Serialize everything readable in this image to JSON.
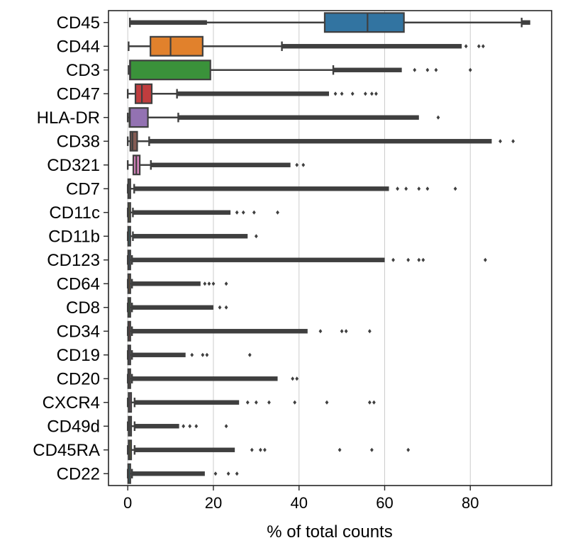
{
  "chart_data": {
    "type": "boxplot",
    "orientation": "horizontal",
    "xlabel": "% of total counts",
    "ylabel": "",
    "title": "",
    "xlim": [
      -4.5,
      99
    ],
    "xticks": [
      0,
      20,
      40,
      60,
      80
    ],
    "xtick_labels": [
      "0",
      "20",
      "40",
      "60",
      "80"
    ],
    "grid": "vertical lines at x ticks",
    "categories": [
      "CD45",
      "CD44",
      "CD3",
      "CD47",
      "HLA-DR",
      "CD38",
      "CD321",
      "CD7",
      "CD11c",
      "CD11b",
      "CD123",
      "CD64",
      "CD8",
      "CD34",
      "CD19",
      "CD20",
      "CXCR4",
      "CD49d",
      "CD45RA",
      "CD22"
    ],
    "boxes": [
      {
        "label": "CD45",
        "color": "#3274a1",
        "whislo": 0.5,
        "q1": 46,
        "med": 56,
        "q3": 64.5,
        "whishi": 92,
        "outlier_start": 92,
        "outlier_end": 94,
        "sparse": [],
        "low_tail": [
          0.5,
          18.5
        ]
      },
      {
        "label": "CD44",
        "color": "#e1812c",
        "whislo": 0.2,
        "q1": 5.3,
        "med": 10,
        "q3": 17.5,
        "whishi": 36,
        "outlier_start": 36,
        "outlier_end": 78,
        "sparse": [
          79,
          82,
          83
        ]
      },
      {
        "label": "CD3",
        "color": "#3a923a",
        "whislo": 0.2,
        "q1": 0.5,
        "med": 0.6,
        "q3": 19.3,
        "whishi": 48,
        "outlier_start": 48,
        "outlier_end": 64,
        "sparse": [
          67,
          70,
          72,
          80
        ]
      },
      {
        "label": "CD47",
        "color": "#c03d3e",
        "whislo": 0,
        "q1": 1.8,
        "med": 3.3,
        "q3": 5.6,
        "whishi": 11.5,
        "outlier_start": 11.5,
        "outlier_end": 47,
        "sparse": [
          48.5,
          50,
          52.5,
          55.5,
          57,
          58
        ]
      },
      {
        "label": "HLA-DR",
        "color": "#9372b2",
        "whislo": 0,
        "q1": 0.4,
        "med": 0.5,
        "q3": 4.7,
        "whishi": 11.8,
        "outlier_start": 11.8,
        "outlier_end": 68,
        "sparse": [
          72.5
        ]
      },
      {
        "label": "CD38",
        "color": "#845b53",
        "whislo": 0,
        "q1": 0.6,
        "med": 1.1,
        "q3": 2.2,
        "whishi": 5,
        "outlier_start": 5,
        "outlier_end": 85,
        "sparse": [
          87,
          90
        ]
      },
      {
        "label": "CD321",
        "color": "#d684bd",
        "whislo": 0,
        "q1": 1.3,
        "med": 2.0,
        "q3": 2.8,
        "whishi": 5.4,
        "outlier_start": 5.4,
        "outlier_end": 38,
        "sparse": [
          39.5,
          41
        ]
      },
      {
        "label": "CD7",
        "color": "#7f7f7f",
        "whislo": 0,
        "q1": 0.1,
        "med": 0.2,
        "q3": 0.6,
        "whishi": 1.5,
        "outlier_start": 1.5,
        "outlier_end": 61,
        "sparse": [
          63,
          65,
          68,
          70,
          76.5
        ]
      },
      {
        "label": "CD11c",
        "color": "#a9aa35",
        "whislo": 0,
        "q1": 0.1,
        "med": 0.2,
        "q3": 0.5,
        "whishi": 1.2,
        "outlier_start": 1.2,
        "outlier_end": 24,
        "sparse": [
          25.5,
          27,
          29.5,
          35
        ]
      },
      {
        "label": "CD11b",
        "color": "#2ebece",
        "whislo": 0,
        "q1": 0.1,
        "med": 0.2,
        "q3": 0.5,
        "whishi": 1.2,
        "outlier_start": 1.2,
        "outlier_end": 28,
        "sparse": [
          30
        ]
      },
      {
        "label": "CD123",
        "color": "#3274a1",
        "whislo": 0,
        "q1": 0.1,
        "med": 0.2,
        "q3": 0.4,
        "whishi": 1,
        "outlier_start": 1,
        "outlier_end": 60,
        "sparse": [
          62,
          65.5,
          68,
          69,
          83.5
        ]
      },
      {
        "label": "CD64",
        "color": "#e1812c",
        "whislo": 0,
        "q1": 0.1,
        "med": 0.2,
        "q3": 0.4,
        "whishi": 1,
        "outlier_start": 1,
        "outlier_end": 17,
        "sparse": [
          18,
          19,
          20,
          23
        ]
      },
      {
        "label": "CD8",
        "color": "#3a923a",
        "whislo": 0,
        "q1": 0.1,
        "med": 0.2,
        "q3": 0.4,
        "whishi": 1,
        "outlier_start": 1,
        "outlier_end": 20,
        "sparse": [
          21.5,
          23
        ]
      },
      {
        "label": "CD34",
        "color": "#c03d3e",
        "whislo": 0,
        "q1": 0.1,
        "med": 0.2,
        "q3": 0.4,
        "whishi": 1,
        "outlier_start": 1,
        "outlier_end": 42,
        "sparse": [
          45,
          50,
          51,
          56.5
        ]
      },
      {
        "label": "CD19",
        "color": "#9372b2",
        "whislo": 0,
        "q1": 0.1,
        "med": 0.2,
        "q3": 0.4,
        "whishi": 1,
        "outlier_start": 1,
        "outlier_end": 13.5,
        "sparse": [
          15,
          17.5,
          18.5,
          28.5
        ]
      },
      {
        "label": "CD20",
        "color": "#845b53",
        "whislo": 0,
        "q1": 0.1,
        "med": 0.2,
        "q3": 0.4,
        "whishi": 1,
        "outlier_start": 1,
        "outlier_end": 35,
        "sparse": [
          38.5,
          39.5
        ]
      },
      {
        "label": "CXCR4",
        "color": "#d684bd",
        "whislo": 0,
        "q1": 0.2,
        "med": 0.4,
        "q3": 0.8,
        "whishi": 1.6,
        "outlier_start": 1.6,
        "outlier_end": 26,
        "sparse": [
          28,
          30,
          33,
          39,
          46.5,
          56.5,
          57.5
        ]
      },
      {
        "label": "CD49d",
        "color": "#7f7f7f",
        "whislo": 0,
        "q1": 0.2,
        "med": 0.4,
        "q3": 0.8,
        "whishi": 1.6,
        "outlier_start": 1.6,
        "outlier_end": 12,
        "sparse": [
          13,
          14.5,
          16,
          23
        ]
      },
      {
        "label": "CD45RA",
        "color": "#a9aa35",
        "whislo": 0,
        "q1": 0.2,
        "med": 0.4,
        "q3": 0.8,
        "whishi": 1.6,
        "outlier_start": 1.6,
        "outlier_end": 25,
        "sparse": [
          29,
          31,
          32,
          49.5,
          57,
          65.5
        ]
      },
      {
        "label": "CD22",
        "color": "#2ebece",
        "whislo": 0,
        "q1": 0.1,
        "med": 0.2,
        "q3": 0.4,
        "whishi": 1,
        "outlier_start": 1,
        "outlier_end": 18,
        "sparse": [
          20.5,
          23.5,
          25.5
        ]
      }
    ]
  }
}
